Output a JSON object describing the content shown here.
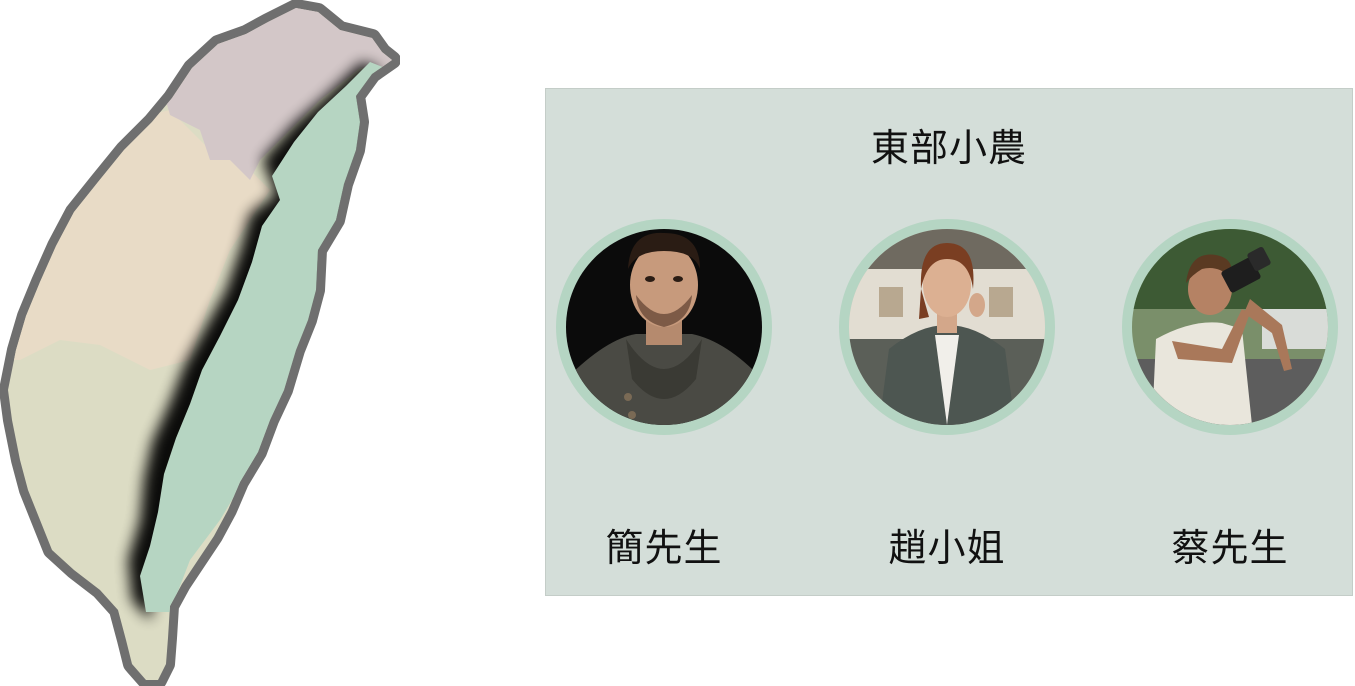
{
  "map": {
    "regions": [
      {
        "name": "north-region",
        "color": "#d3c7c8"
      },
      {
        "name": "central-region",
        "color": "#e8dbc6"
      },
      {
        "name": "south-region",
        "color": "#dcdcc4"
      },
      {
        "name": "east-region",
        "color": "#b6d5c2"
      }
    ],
    "outline_color": "#6f6f6f"
  },
  "panel": {
    "title": "東部小農",
    "background": "#d4ded9",
    "ring_color": "#b5d5c3",
    "farmers": [
      {
        "name": "簡先生",
        "photo": "portrait-man-sweater"
      },
      {
        "name": "趙小姐",
        "photo": "portrait-woman-blazer"
      },
      {
        "name": "蔡先生",
        "photo": "portrait-man-camera"
      }
    ]
  }
}
